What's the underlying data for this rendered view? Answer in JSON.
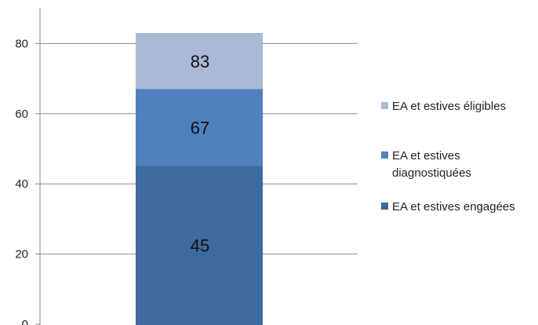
{
  "chart_data": {
    "type": "bar",
    "stacked_display": "overlay",
    "categories": [
      ""
    ],
    "series": [
      {
        "name": "EA et estives éligibles",
        "values": [
          83
        ],
        "color": "#a9b9d6"
      },
      {
        "name": "EA et estives diagnostiquées",
        "values": [
          67
        ],
        "color": "#4f81bd"
      },
      {
        "name": "EA et estives engagées",
        "values": [
          45
        ],
        "color": "#3d6a9f"
      }
    ],
    "data_labels": [
      "83",
      "67",
      "45"
    ],
    "y_ticks": [
      "0",
      "20",
      "40",
      "60",
      "80"
    ],
    "ylim": [
      0,
      92
    ],
    "grid": true,
    "legend_position": "right",
    "title": "",
    "xlabel": "",
    "ylabel": ""
  }
}
